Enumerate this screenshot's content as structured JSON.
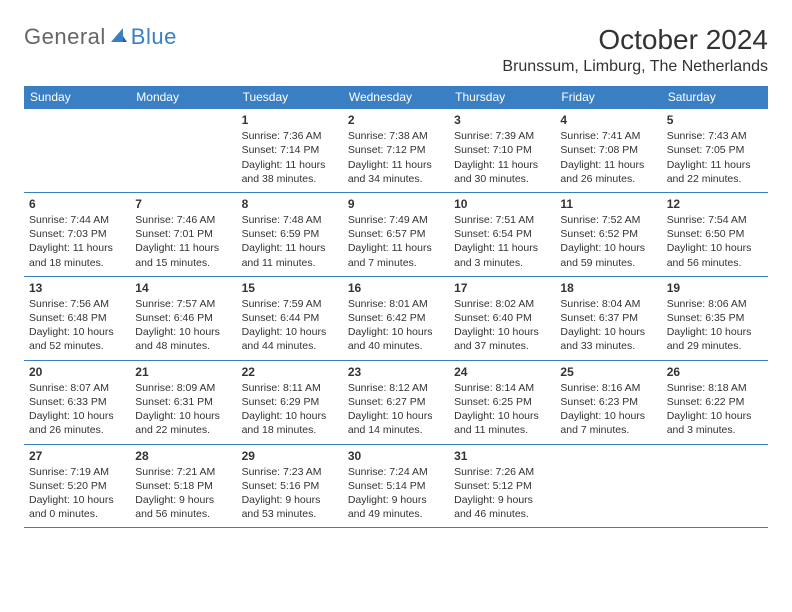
{
  "logo": {
    "part1": "General",
    "part2": "Blue"
  },
  "title": "October 2024",
  "location": "Brunssum, Limburg, The Netherlands",
  "colors": {
    "brand": "#3a7fc4",
    "header_text": "#ffffff",
    "body_text": "#333333",
    "background": "#ffffff"
  },
  "days_of_week": [
    "Sunday",
    "Monday",
    "Tuesday",
    "Wednesday",
    "Thursday",
    "Friday",
    "Saturday"
  ],
  "weeks": [
    [
      null,
      null,
      {
        "n": "1",
        "sr": "Sunrise: 7:36 AM",
        "ss": "Sunset: 7:14 PM",
        "dl": "Daylight: 11 hours and 38 minutes."
      },
      {
        "n": "2",
        "sr": "Sunrise: 7:38 AM",
        "ss": "Sunset: 7:12 PM",
        "dl": "Daylight: 11 hours and 34 minutes."
      },
      {
        "n": "3",
        "sr": "Sunrise: 7:39 AM",
        "ss": "Sunset: 7:10 PM",
        "dl": "Daylight: 11 hours and 30 minutes."
      },
      {
        "n": "4",
        "sr": "Sunrise: 7:41 AM",
        "ss": "Sunset: 7:08 PM",
        "dl": "Daylight: 11 hours and 26 minutes."
      },
      {
        "n": "5",
        "sr": "Sunrise: 7:43 AM",
        "ss": "Sunset: 7:05 PM",
        "dl": "Daylight: 11 hours and 22 minutes."
      }
    ],
    [
      {
        "n": "6",
        "sr": "Sunrise: 7:44 AM",
        "ss": "Sunset: 7:03 PM",
        "dl": "Daylight: 11 hours and 18 minutes."
      },
      {
        "n": "7",
        "sr": "Sunrise: 7:46 AM",
        "ss": "Sunset: 7:01 PM",
        "dl": "Daylight: 11 hours and 15 minutes."
      },
      {
        "n": "8",
        "sr": "Sunrise: 7:48 AM",
        "ss": "Sunset: 6:59 PM",
        "dl": "Daylight: 11 hours and 11 minutes."
      },
      {
        "n": "9",
        "sr": "Sunrise: 7:49 AM",
        "ss": "Sunset: 6:57 PM",
        "dl": "Daylight: 11 hours and 7 minutes."
      },
      {
        "n": "10",
        "sr": "Sunrise: 7:51 AM",
        "ss": "Sunset: 6:54 PM",
        "dl": "Daylight: 11 hours and 3 minutes."
      },
      {
        "n": "11",
        "sr": "Sunrise: 7:52 AM",
        "ss": "Sunset: 6:52 PM",
        "dl": "Daylight: 10 hours and 59 minutes."
      },
      {
        "n": "12",
        "sr": "Sunrise: 7:54 AM",
        "ss": "Sunset: 6:50 PM",
        "dl": "Daylight: 10 hours and 56 minutes."
      }
    ],
    [
      {
        "n": "13",
        "sr": "Sunrise: 7:56 AM",
        "ss": "Sunset: 6:48 PM",
        "dl": "Daylight: 10 hours and 52 minutes."
      },
      {
        "n": "14",
        "sr": "Sunrise: 7:57 AM",
        "ss": "Sunset: 6:46 PM",
        "dl": "Daylight: 10 hours and 48 minutes."
      },
      {
        "n": "15",
        "sr": "Sunrise: 7:59 AM",
        "ss": "Sunset: 6:44 PM",
        "dl": "Daylight: 10 hours and 44 minutes."
      },
      {
        "n": "16",
        "sr": "Sunrise: 8:01 AM",
        "ss": "Sunset: 6:42 PM",
        "dl": "Daylight: 10 hours and 40 minutes."
      },
      {
        "n": "17",
        "sr": "Sunrise: 8:02 AM",
        "ss": "Sunset: 6:40 PM",
        "dl": "Daylight: 10 hours and 37 minutes."
      },
      {
        "n": "18",
        "sr": "Sunrise: 8:04 AM",
        "ss": "Sunset: 6:37 PM",
        "dl": "Daylight: 10 hours and 33 minutes."
      },
      {
        "n": "19",
        "sr": "Sunrise: 8:06 AM",
        "ss": "Sunset: 6:35 PM",
        "dl": "Daylight: 10 hours and 29 minutes."
      }
    ],
    [
      {
        "n": "20",
        "sr": "Sunrise: 8:07 AM",
        "ss": "Sunset: 6:33 PM",
        "dl": "Daylight: 10 hours and 26 minutes."
      },
      {
        "n": "21",
        "sr": "Sunrise: 8:09 AM",
        "ss": "Sunset: 6:31 PM",
        "dl": "Daylight: 10 hours and 22 minutes."
      },
      {
        "n": "22",
        "sr": "Sunrise: 8:11 AM",
        "ss": "Sunset: 6:29 PM",
        "dl": "Daylight: 10 hours and 18 minutes."
      },
      {
        "n": "23",
        "sr": "Sunrise: 8:12 AM",
        "ss": "Sunset: 6:27 PM",
        "dl": "Daylight: 10 hours and 14 minutes."
      },
      {
        "n": "24",
        "sr": "Sunrise: 8:14 AM",
        "ss": "Sunset: 6:25 PM",
        "dl": "Daylight: 10 hours and 11 minutes."
      },
      {
        "n": "25",
        "sr": "Sunrise: 8:16 AM",
        "ss": "Sunset: 6:23 PM",
        "dl": "Daylight: 10 hours and 7 minutes."
      },
      {
        "n": "26",
        "sr": "Sunrise: 8:18 AM",
        "ss": "Sunset: 6:22 PM",
        "dl": "Daylight: 10 hours and 3 minutes."
      }
    ],
    [
      {
        "n": "27",
        "sr": "Sunrise: 7:19 AM",
        "ss": "Sunset: 5:20 PM",
        "dl": "Daylight: 10 hours and 0 minutes."
      },
      {
        "n": "28",
        "sr": "Sunrise: 7:21 AM",
        "ss": "Sunset: 5:18 PM",
        "dl": "Daylight: 9 hours and 56 minutes."
      },
      {
        "n": "29",
        "sr": "Sunrise: 7:23 AM",
        "ss": "Sunset: 5:16 PM",
        "dl": "Daylight: 9 hours and 53 minutes."
      },
      {
        "n": "30",
        "sr": "Sunrise: 7:24 AM",
        "ss": "Sunset: 5:14 PM",
        "dl": "Daylight: 9 hours and 49 minutes."
      },
      {
        "n": "31",
        "sr": "Sunrise: 7:26 AM",
        "ss": "Sunset: 5:12 PM",
        "dl": "Daylight: 9 hours and 46 minutes."
      },
      null,
      null
    ]
  ]
}
